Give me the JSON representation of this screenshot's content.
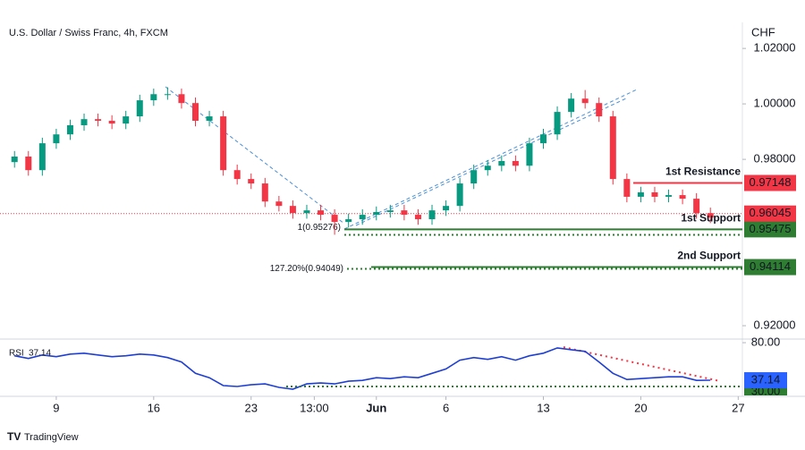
{
  "header": {
    "title": "U.S. Dollar / Swiss Franc, 4h, FXCM",
    "currency": "CHF"
  },
  "footer": {
    "brand": "TradingView"
  },
  "chart_data": [
    {
      "type": "candlestick",
      "x": [
        -3,
        -2,
        -1,
        0,
        1,
        2,
        3,
        4,
        5,
        6,
        7,
        8,
        9,
        10,
        11,
        12,
        13,
        14,
        15,
        16,
        17,
        18,
        19,
        20,
        21,
        22,
        23,
        24,
        25,
        26,
        27,
        28,
        29,
        30,
        31,
        32,
        33,
        34,
        35,
        36,
        37,
        38,
        39,
        40,
        41,
        42,
        43,
        44,
        45,
        46,
        47
      ],
      "open": [
        0.979,
        0.981,
        0.9761,
        0.9858,
        0.989,
        0.9923,
        0.9945,
        0.9939,
        0.9929,
        0.9955,
        1.0013,
        1.0035,
        1.0035,
        1.0003,
        0.9939,
        0.9955,
        0.9761,
        0.9729,
        0.9713,
        0.9648,
        0.9632,
        0.9606,
        0.9616,
        0.96,
        0.9574,
        0.9584,
        0.96,
        0.961,
        0.9616,
        0.96,
        0.9584,
        0.9616,
        0.9632,
        0.9713,
        0.9761,
        0.9777,
        0.9794,
        0.9777,
        0.9858,
        0.989,
        0.9971,
        1.0019,
        1.0003,
        0.9955,
        0.9729,
        0.9665,
        0.9681,
        0.9665,
        0.9671,
        0.9658,
        0.9606
      ],
      "high": [
        0.983,
        0.983,
        0.9878,
        0.991,
        0.9943,
        0.9965,
        0.9965,
        0.9959,
        0.9975,
        1.0033,
        1.0055,
        1.006,
        1.0055,
        1.0023,
        0.9975,
        0.9975,
        0.9781,
        0.9749,
        0.9733,
        0.9668,
        0.9652,
        0.9636,
        0.9636,
        0.962,
        0.9604,
        0.962,
        0.963,
        0.9636,
        0.9636,
        0.962,
        0.9636,
        0.9652,
        0.9733,
        0.9781,
        0.9797,
        0.9814,
        0.9814,
        0.9878,
        0.991,
        0.9991,
        1.0039,
        1.005,
        1.0023,
        0.9975,
        0.9749,
        0.9701,
        0.9701,
        0.9691,
        0.9691,
        0.9678,
        0.9626
      ],
      "low": [
        0.977,
        0.9741,
        0.9741,
        0.9838,
        0.987,
        0.9903,
        0.9919,
        0.9909,
        0.9909,
        0.9935,
        0.9993,
        1.0015,
        0.9983,
        0.9919,
        0.9919,
        0.9741,
        0.9709,
        0.9693,
        0.9628,
        0.9612,
        0.9586,
        0.9586,
        0.958,
        0.9528,
        0.9554,
        0.9564,
        0.958,
        0.959,
        0.958,
        0.9564,
        0.9564,
        0.9596,
        0.9612,
        0.9693,
        0.9741,
        0.9757,
        0.9757,
        0.9757,
        0.9838,
        0.987,
        0.9951,
        0.9983,
        0.9935,
        0.9709,
        0.9645,
        0.9645,
        0.9645,
        0.9645,
        0.9638,
        0.9586,
        0.957
      ],
      "close": [
        0.981,
        0.9761,
        0.9858,
        0.989,
        0.9923,
        0.9945,
        0.9939,
        0.9929,
        0.9955,
        1.0013,
        1.0035,
        1.0035,
        1.0003,
        0.9939,
        0.9955,
        0.9761,
        0.9729,
        0.9713,
        0.9648,
        0.9632,
        0.9606,
        0.9616,
        0.96,
        0.9574,
        0.9584,
        0.96,
        0.961,
        0.9616,
        0.96,
        0.9584,
        0.9616,
        0.9632,
        0.9713,
        0.9761,
        0.9777,
        0.9794,
        0.9777,
        0.9858,
        0.989,
        0.9971,
        1.0019,
        1.0003,
        0.9955,
        0.9729,
        0.9665,
        0.9681,
        0.9665,
        0.9671,
        0.9658,
        0.9606,
        0.959
      ],
      "up_color": "#089981",
      "down_color": "#f23645",
      "xlim": [
        -3.4,
        49.3
      ],
      "ylim": [
        0.9155,
        1.0294
      ],
      "yticks": [
        {
          "value": 0.92,
          "label": "0.92000"
        },
        {
          "value": 0.98,
          "label": "0.98000"
        },
        {
          "value": 1.0,
          "label": "1.00000"
        },
        {
          "value": 1.02,
          "label": "1.02000"
        }
      ],
      "xticks": [
        {
          "value": 0,
          "label": "9"
        },
        {
          "value": 7,
          "label": "16"
        },
        {
          "value": 14,
          "label": "23"
        },
        {
          "value": 18.54,
          "label": "13:00"
        },
        {
          "value": 23,
          "label": "Jun"
        },
        {
          "value": 28,
          "label": "6"
        },
        {
          "value": 35,
          "label": "13"
        },
        {
          "value": 42,
          "label": "20"
        },
        {
          "value": 49,
          "label": "27"
        }
      ],
      "grid": false,
      "levels": [
        {
          "label": "1st Resistance",
          "value": 0.97148,
          "color": "#f23645"
        },
        {
          "label": "1st Support",
          "value": 0.95475,
          "color": "#2e7d32"
        },
        {
          "label": "2nd Support",
          "value": 0.94114,
          "color": "#2e7d32"
        }
      ],
      "last_price": {
        "value": 0.96045,
        "color": "#f23645"
      },
      "fib": [
        {
          "label": "1(0.95276)",
          "value": 0.95276,
          "color": "#2962ff"
        },
        {
          "label": "127.20%(0.94049)",
          "value": 0.94049,
          "color": "#2962ff"
        }
      ]
    },
    {
      "type": "line",
      "name": "RSI",
      "color": "#1f3fd1",
      "values": [
        65,
        62,
        66,
        64,
        67,
        68,
        66,
        64,
        65,
        67,
        66,
        63,
        58,
        45,
        40,
        31,
        30,
        32,
        33,
        29,
        27,
        33,
        34,
        33,
        36,
        37,
        40,
        39,
        41,
        40,
        45,
        50,
        60,
        63,
        61,
        64,
        60,
        65,
        68,
        74,
        72,
        70,
        58,
        45,
        38,
        39,
        40,
        41,
        41,
        37,
        37.14
      ],
      "value_color": "#2962ff",
      "ylim": [
        18.8,
        83.1
      ],
      "yticks": [
        {
          "value": 30,
          "label": "30.00"
        },
        {
          "value": 80,
          "label": "80.00"
        }
      ],
      "level_color": "#2e7d32"
    }
  ]
}
